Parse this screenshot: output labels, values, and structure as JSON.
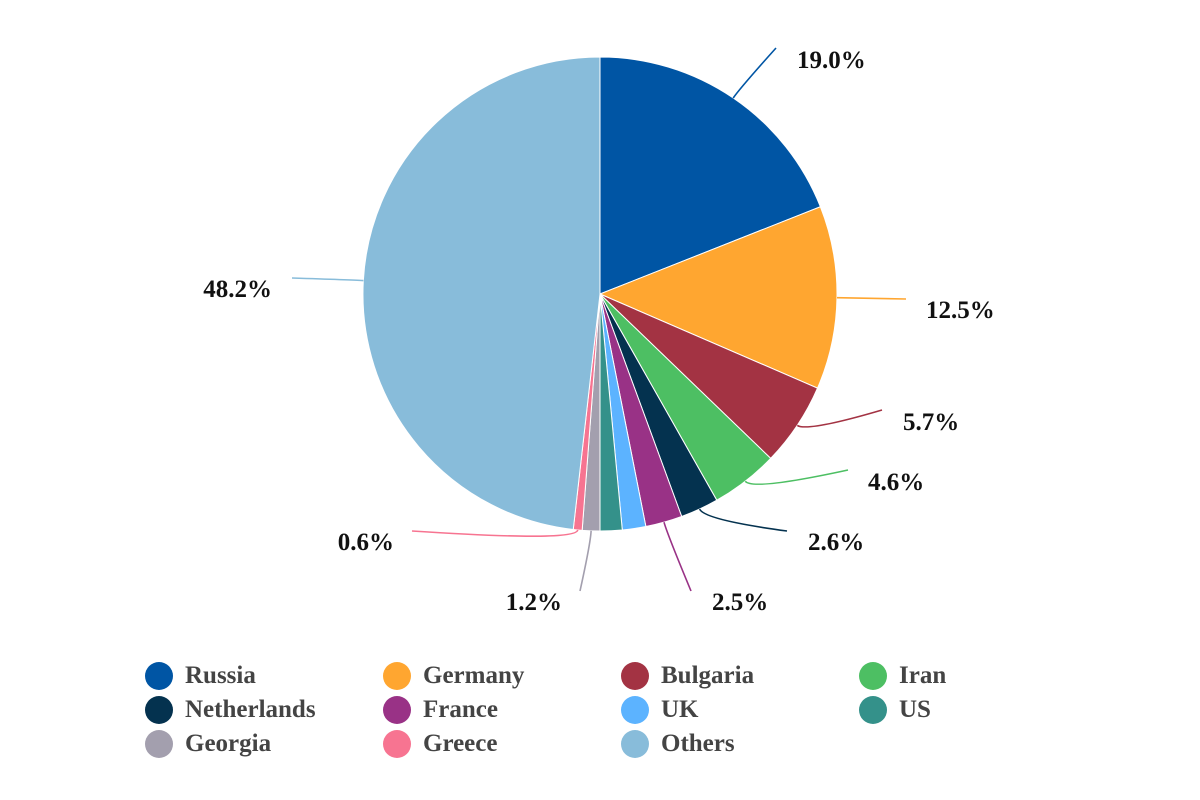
{
  "chart_data": {
    "type": "pie",
    "title": "",
    "unit": "%",
    "slices": [
      {
        "name": "Russia",
        "value": 19.0,
        "label": "19.0%",
        "color": "#0055A4"
      },
      {
        "name": "Germany",
        "value": 12.5,
        "label": "12.5%",
        "color": "#FFA630"
      },
      {
        "name": "Bulgaria",
        "value": 5.7,
        "label": "5.7%",
        "color": "#A33343"
      },
      {
        "name": "Iran",
        "value": 4.6,
        "label": "4.6%",
        "color": "#4DBF63"
      },
      {
        "name": "Netherlands",
        "value": 2.6,
        "label": "2.6%",
        "color": "#04324F"
      },
      {
        "name": "France",
        "value": 2.5,
        "label": "2.5%",
        "color": "#993286"
      },
      {
        "name": "UK",
        "value": 1.6,
        "label": "",
        "color": "#5CB3FF"
      },
      {
        "name": "US",
        "value": 1.5,
        "label": "",
        "color": "#34918A"
      },
      {
        "name": "Georgia",
        "value": 1.2,
        "label": "1.2%",
        "color": "#A39FAE"
      },
      {
        "name": "Greece",
        "value": 0.6,
        "label": "0.6%",
        "color": "#F77491"
      },
      {
        "name": "Others",
        "value": 48.2,
        "label": "48.2%",
        "color": "#88BCDA"
      }
    ],
    "legend_position": "bottom"
  }
}
